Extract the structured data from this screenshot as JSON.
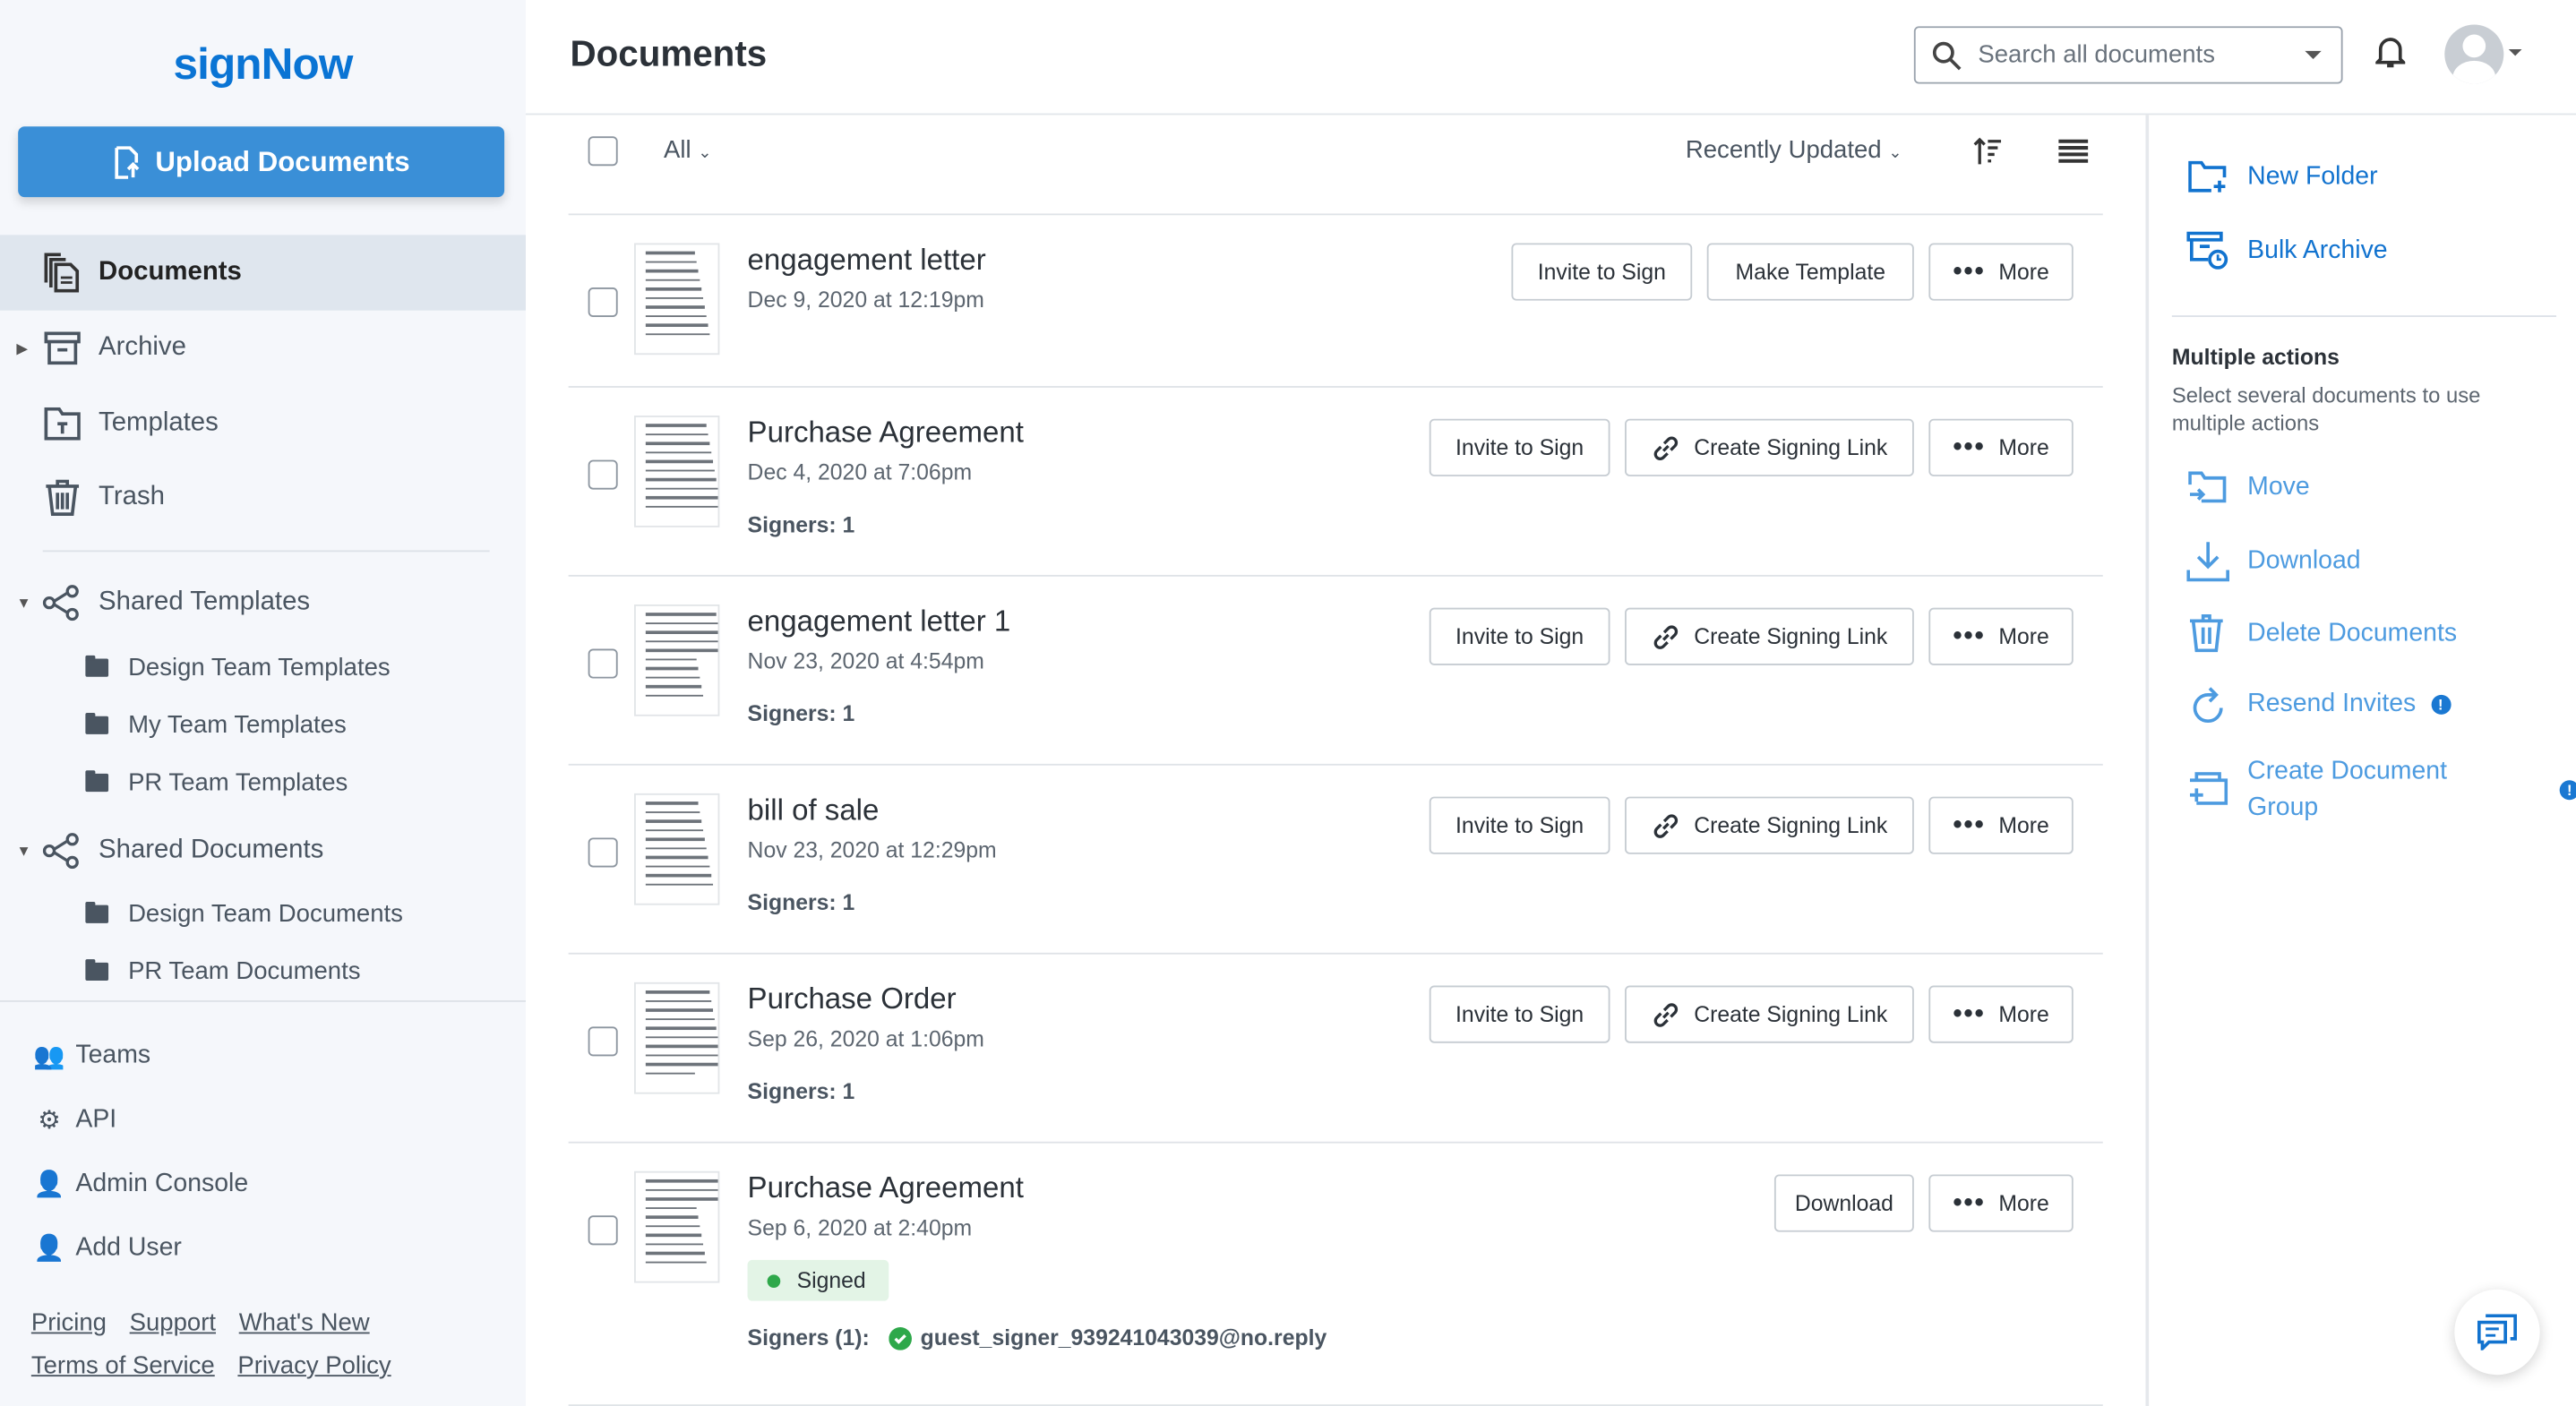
{
  "brand": {
    "logo": "signNow",
    "accent": "#0a74d4",
    "upload_color": "#3a8fd7"
  },
  "sidebar": {
    "upload_label": "Upload Documents",
    "items": [
      {
        "label": "Documents",
        "icon": "documents-icon",
        "active": true
      },
      {
        "label": "Archive",
        "icon": "archive-icon"
      },
      {
        "label": "Templates",
        "icon": "templates-icon"
      },
      {
        "label": "Trash",
        "icon": "trash-icon"
      }
    ],
    "shared_templates": {
      "label": "Shared Templates",
      "children": [
        "Design Team Templates",
        "My Team Templates",
        "PR Team Templates"
      ]
    },
    "shared_documents": {
      "label": "Shared Documents",
      "children": [
        "Design Team Documents",
        "PR Team Documents"
      ]
    },
    "bottom": [
      {
        "label": "Teams",
        "icon": "teams-icon"
      },
      {
        "label": "API",
        "icon": "api-icon"
      },
      {
        "label": "Admin Console",
        "icon": "admin-icon"
      },
      {
        "label": "Add User",
        "icon": "add-user-icon"
      }
    ],
    "links": [
      "Pricing",
      "Support",
      "What's New",
      "Terms of Service",
      "Privacy Policy"
    ]
  },
  "header": {
    "title": "Documents",
    "search_placeholder": "Search all documents"
  },
  "toolbar": {
    "filter": "All",
    "sort": "Recently Updated"
  },
  "documents": [
    {
      "name": "engagement letter",
      "date": "Dec 9, 2020 at 12:19pm",
      "signers": "",
      "actions": [
        "Invite to Sign",
        "Make Template",
        "More"
      ]
    },
    {
      "name": "Purchase Agreement",
      "date": "Dec 4, 2020 at 7:06pm",
      "signers": "Signers: 1",
      "actions": [
        "Invite to Sign",
        "Create Signing Link",
        "More"
      ]
    },
    {
      "name": "engagement letter 1",
      "date": "Nov 23, 2020 at 4:54pm",
      "signers": "Signers: 1",
      "actions": [
        "Invite to Sign",
        "Create Signing Link",
        "More"
      ]
    },
    {
      "name": "bill of sale",
      "date": "Nov 23, 2020 at 12:29pm",
      "signers": "Signers: 1",
      "actions": [
        "Invite to Sign",
        "Create Signing Link",
        "More"
      ]
    },
    {
      "name": "Purchase Order",
      "date": "Sep 26, 2020 at 1:06pm",
      "signers": "Signers: 1",
      "actions": [
        "Invite to Sign",
        "Create Signing Link",
        "More"
      ]
    },
    {
      "name": "Purchase Agreement",
      "date": "Sep 6, 2020 at 2:40pm",
      "status": "Signed",
      "signers_label": "Signers (1):",
      "signer_email": "guest_signer_939241043039@no.reply",
      "actions": [
        "Download",
        "More"
      ]
    }
  ],
  "right_panel": {
    "new_folder": "New Folder",
    "bulk_archive": "Bulk Archive",
    "multi_title": "Multiple actions",
    "multi_desc": "Select several documents to use multiple actions",
    "actions": [
      "Move",
      "Download",
      "Delete Documents",
      "Resend Invites",
      "Create Document Group"
    ]
  }
}
